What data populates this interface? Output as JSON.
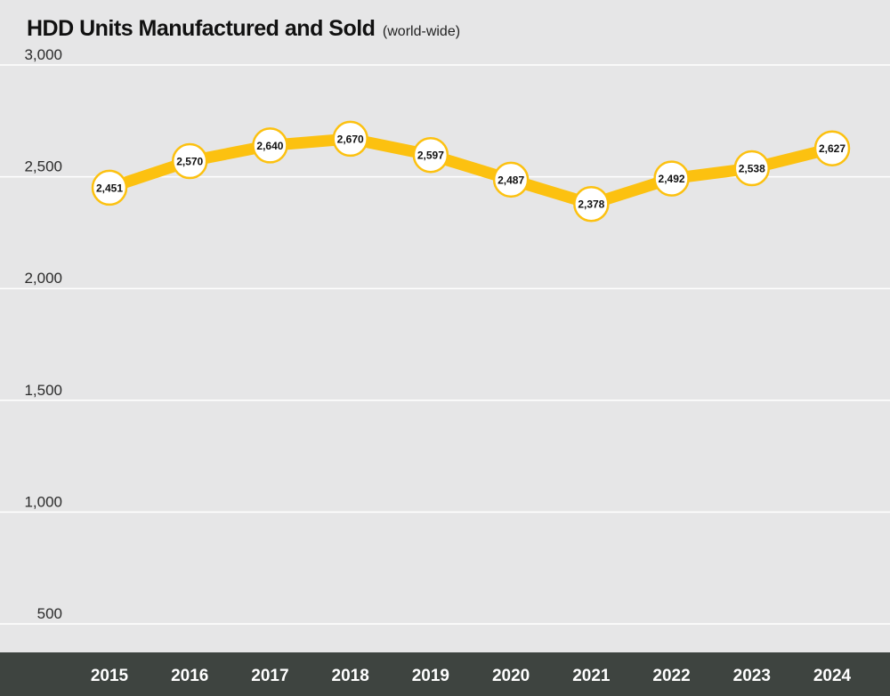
{
  "title": "HDD Units Manufactured and Sold",
  "subtitle": "(world-wide)",
  "colors": {
    "background": "#e6e6e7",
    "line": "#fcc110",
    "axis_band": "#3e4440",
    "marker_fill": "#ffffff",
    "grid": "#ffffff"
  },
  "chart_data": {
    "type": "line",
    "title": "HDD Units Manufactured and Sold",
    "subtitle": "(world-wide)",
    "categories": [
      "2015",
      "2016",
      "2017",
      "2018",
      "2019",
      "2020",
      "2021",
      "2022",
      "2023",
      "2024"
    ],
    "series": [
      {
        "values": [
          2451,
          2570,
          2640,
          2670,
          2597,
          2487,
          2378,
          2492,
          2538,
          2627
        ],
        "labels": [
          "2,451",
          "2,570",
          "2,640",
          "2,670",
          "2,597",
          "2,487",
          "2,378",
          "2,492",
          "2,538",
          "2,627"
        ]
      }
    ],
    "yticks": [
      500,
      1000,
      1500,
      2000,
      2500,
      3000
    ],
    "ytick_labels": [
      "500",
      "1,000",
      "1,500",
      "2,000",
      "2,500",
      "3,000"
    ],
    "ylim": [
      500,
      3000
    ],
    "grid": true,
    "xlabel": "",
    "ylabel": ""
  }
}
